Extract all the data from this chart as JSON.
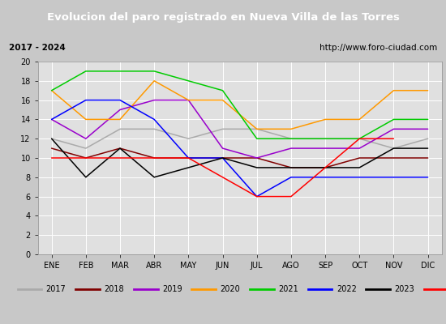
{
  "title": "Evolucion del paro registrado en Nueva Villa de las Torres",
  "subtitle_left": "2017 - 2024",
  "subtitle_right": "http://www.foro-ciudad.com",
  "months": [
    "ENE",
    "FEB",
    "MAR",
    "ABR",
    "MAY",
    "JUN",
    "JUL",
    "AGO",
    "SEP",
    "OCT",
    "NOV",
    "DIC"
  ],
  "series": {
    "2017": [
      12,
      11,
      13,
      13,
      12,
      13,
      13,
      12,
      12,
      12,
      11,
      12
    ],
    "2018": [
      11,
      10,
      11,
      10,
      10,
      10,
      10,
      9,
      9,
      10,
      10,
      10
    ],
    "2019": [
      14,
      12,
      15,
      16,
      16,
      11,
      10,
      11,
      11,
      11,
      13,
      13
    ],
    "2020": [
      17,
      14,
      14,
      18,
      16,
      16,
      13,
      13,
      14,
      14,
      17,
      17
    ],
    "2021": [
      17,
      19,
      19,
      19,
      18,
      17,
      12,
      12,
      12,
      12,
      14,
      14
    ],
    "2022": [
      14,
      16,
      16,
      14,
      10,
      10,
      6,
      8,
      8,
      8,
      8,
      8
    ],
    "2023": [
      12,
      8,
      11,
      8,
      9,
      10,
      9,
      9,
      9,
      9,
      11,
      11
    ],
    "2024": [
      10,
      10,
      10,
      10,
      10,
      8,
      6,
      6,
      9,
      12,
      12,
      null
    ]
  },
  "colors": {
    "2017": "#aaaaaa",
    "2018": "#800000",
    "2019": "#9900cc",
    "2020": "#ff9900",
    "2021": "#00cc00",
    "2022": "#0000ff",
    "2023": "#000000",
    "2024": "#ff0000"
  },
  "ylim": [
    0,
    20
  ],
  "yticks": [
    0,
    2,
    4,
    6,
    8,
    10,
    12,
    14,
    16,
    18,
    20
  ],
  "outer_bg": "#c8c8c8",
  "plot_bg": "#e0e0e0",
  "title_bg": "#4466bb",
  "title_color": "#ffffff",
  "grid_color": "#ffffff",
  "legend_bg": "#e8e8e8",
  "subtitle_bg": "#d0d0d0"
}
